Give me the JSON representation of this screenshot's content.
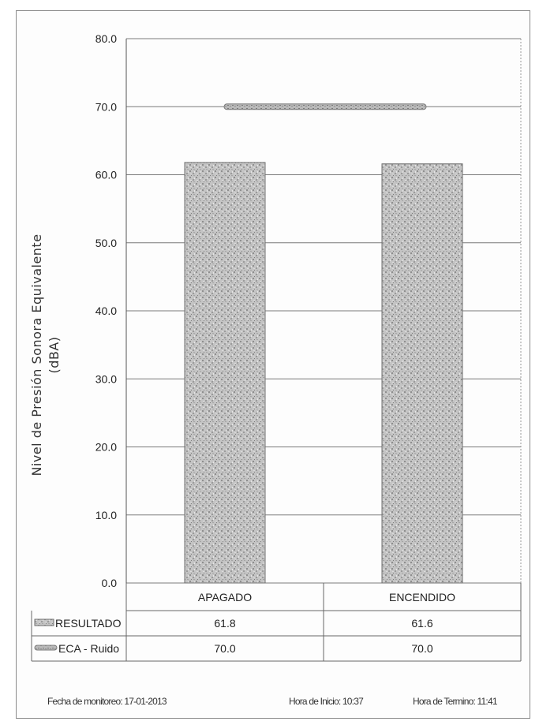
{
  "chart_data": {
    "type": "bar",
    "categories": [
      "APAGADO",
      "ENCENDIDO"
    ],
    "series": [
      {
        "name": "RESULTADO",
        "values": [
          61.8,
          61.6
        ]
      },
      {
        "name": "ECA - Ruido",
        "values": [
          70.0,
          70.0
        ],
        "style": "line"
      }
    ],
    "ylabel": "Nivel de Presión Sonora Equivalente (dBA)",
    "ylabel_lines": [
      "Nivel de Presión Sonora Equivalente",
      "(dBA)"
    ],
    "ylim": [
      0,
      80
    ],
    "yticks": [
      "0.0",
      "10.0",
      "20.0",
      "30.0",
      "40.0",
      "50.0",
      "60.0",
      "70.0",
      "80.0"
    ],
    "grid": true,
    "data_table": {
      "rows": [
        {
          "label": "RESULTADO",
          "values": [
            "61.8",
            "61.6"
          ]
        },
        {
          "label": "ECA - Ruido",
          "values": [
            "70.0",
            "70.0"
          ]
        }
      ]
    },
    "colors": {
      "bar": "#bdbdbd",
      "bar_dark": "#7d7d7d",
      "eca_line": "#8c8c8c",
      "grid": "#7a7a7a"
    }
  },
  "footer": {
    "fecha": "Fecha de monitoreo: 17-01-2013",
    "inicio": "Hora de Inicio: 10:37",
    "termino": "Hora de Termino: 11:41"
  }
}
